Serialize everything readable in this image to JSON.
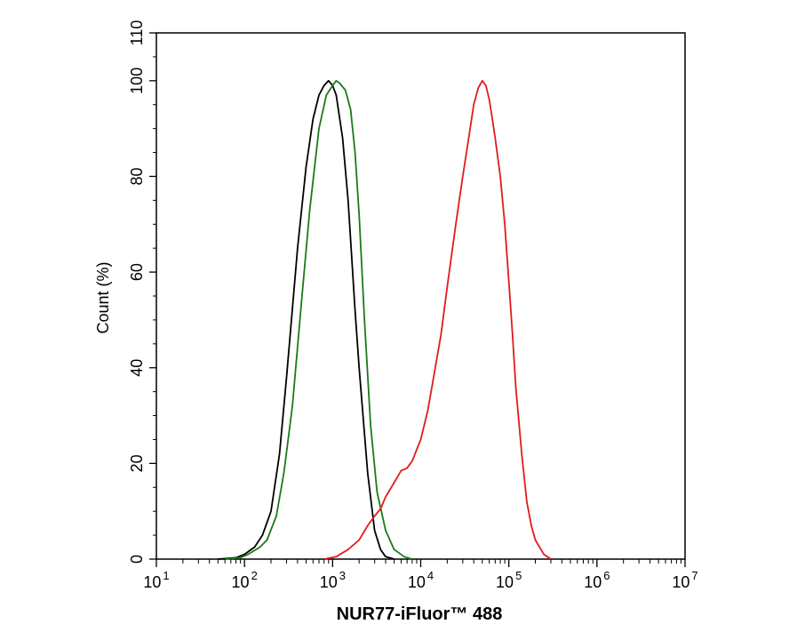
{
  "chart_data": {
    "type": "line",
    "title": "",
    "xlabel": "NUR77-iFluor™ 488",
    "ylabel": "Count  (%)",
    "xscale": "log",
    "xlim": [
      10,
      10000000
    ],
    "ylim": [
      0,
      110
    ],
    "grid": false,
    "legend": "none",
    "x_ticks": [
      {
        "base": "10",
        "exp": "1",
        "value": 10
      },
      {
        "base": "10",
        "exp": "2",
        "value": 100
      },
      {
        "base": "10",
        "exp": "3",
        "value": 1000
      },
      {
        "base": "10",
        "exp": "4",
        "value": 10000
      },
      {
        "base": "10",
        "exp": "5",
        "value": 100000
      },
      {
        "base": "10",
        "exp": "6",
        "value": 1000000
      },
      {
        "base": "10",
        "exp": "7",
        "value": 10000000
      }
    ],
    "y_ticks": [
      0,
      20,
      40,
      60,
      80,
      100,
      110
    ],
    "series": [
      {
        "color": "#000000",
        "points": [
          [
            50,
            0
          ],
          [
            80,
            0.3
          ],
          [
            100,
            1
          ],
          [
            130,
            2.5
          ],
          [
            160,
            5
          ],
          [
            200,
            10
          ],
          [
            250,
            22
          ],
          [
            300,
            38
          ],
          [
            400,
            65
          ],
          [
            500,
            82
          ],
          [
            600,
            92
          ],
          [
            700,
            97
          ],
          [
            800,
            99
          ],
          [
            900,
            100
          ],
          [
            1000,
            99
          ],
          [
            1100,
            97
          ],
          [
            1300,
            88
          ],
          [
            1500,
            75
          ],
          [
            1800,
            52
          ],
          [
            2000,
            40
          ],
          [
            2500,
            18
          ],
          [
            3000,
            6
          ],
          [
            3500,
            2
          ],
          [
            4000,
            0.5
          ],
          [
            5000,
            0
          ]
        ]
      },
      {
        "color": "#1a7a1a",
        "points": [
          [
            60,
            0
          ],
          [
            90,
            0.3
          ],
          [
            110,
            1
          ],
          [
            150,
            2.5
          ],
          [
            180,
            4
          ],
          [
            230,
            9
          ],
          [
            280,
            18
          ],
          [
            350,
            32
          ],
          [
            450,
            55
          ],
          [
            550,
            73
          ],
          [
            700,
            90
          ],
          [
            850,
            97
          ],
          [
            1000,
            99
          ],
          [
            1100,
            100
          ],
          [
            1200,
            99.5
          ],
          [
            1400,
            98
          ],
          [
            1600,
            94
          ],
          [
            1800,
            85
          ],
          [
            2000,
            72
          ],
          [
            2300,
            50
          ],
          [
            2700,
            28
          ],
          [
            3200,
            14
          ],
          [
            4000,
            6
          ],
          [
            5000,
            2
          ],
          [
            6500,
            0.5
          ],
          [
            8000,
            0
          ]
        ]
      },
      {
        "color": "#e31a1c",
        "points": [
          [
            800,
            0
          ],
          [
            1100,
            0.5
          ],
          [
            1500,
            2
          ],
          [
            2000,
            4
          ],
          [
            2500,
            7
          ],
          [
            3000,
            9
          ],
          [
            3500,
            10.5
          ],
          [
            4000,
            13
          ],
          [
            5000,
            16
          ],
          [
            6000,
            18.5
          ],
          [
            7000,
            19
          ],
          [
            8000,
            20.5
          ],
          [
            10000,
            25
          ],
          [
            12000,
            31
          ],
          [
            14000,
            38
          ],
          [
            17000,
            47
          ],
          [
            20000,
            57
          ],
          [
            25000,
            70
          ],
          [
            30000,
            80
          ],
          [
            35000,
            88
          ],
          [
            40000,
            95
          ],
          [
            45000,
            98.5
          ],
          [
            50000,
            100
          ],
          [
            55000,
            99
          ],
          [
            60000,
            96
          ],
          [
            65000,
            92
          ],
          [
            70000,
            88
          ],
          [
            80000,
            80
          ],
          [
            90000,
            70
          ],
          [
            100000,
            58
          ],
          [
            110000,
            47
          ],
          [
            120000,
            36
          ],
          [
            140000,
            22
          ],
          [
            160000,
            12
          ],
          [
            180000,
            7
          ],
          [
            200000,
            4
          ],
          [
            250000,
            1
          ],
          [
            300000,
            0
          ]
        ]
      }
    ]
  }
}
